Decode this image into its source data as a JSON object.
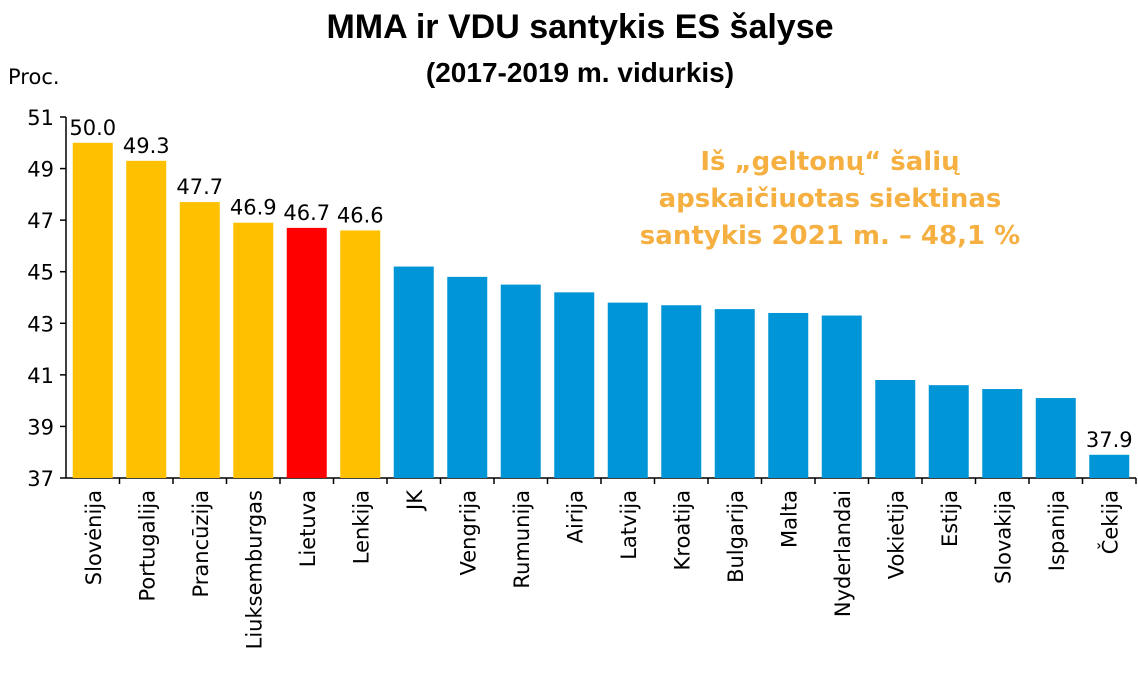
{
  "chart_data": {
    "type": "bar",
    "title": "MMA ir VDU santykis ES šalyse",
    "subtitle": "(2017-2019 m. vidurkis)",
    "y_label": "Proc.",
    "annotation": [
      "Iš „geltonų“ šalių",
      "apskaičiuotas  siektinas",
      "santykis 2021 m. – 48,1 %"
    ],
    "categories": [
      "Slovėnija",
      "Portugalija",
      "Prancūzija",
      "Liuksemburgas",
      "Lietuva",
      "Lenkija",
      "JK",
      "Vengrija",
      "Rumunija",
      "Airija",
      "Latvija",
      "Kroatija",
      "Bulgarija",
      "Malta",
      "Nyderlandai",
      "Vokietija",
      "Estija",
      "Slovakija",
      "Ispanija",
      "Čekija"
    ],
    "values": [
      50.0,
      49.3,
      47.7,
      46.9,
      46.7,
      46.6,
      45.2,
      44.8,
      44.5,
      44.2,
      43.8,
      43.7,
      43.55,
      43.4,
      43.3,
      40.8,
      40.6,
      40.45,
      40.1,
      37.9
    ],
    "value_labels": [
      "50.0",
      "49.3",
      "47.7",
      "46.9",
      "46.7",
      "46.6",
      null,
      null,
      null,
      null,
      null,
      null,
      null,
      null,
      null,
      null,
      null,
      null,
      null,
      "37.9"
    ],
    "colors": [
      "#ffc000",
      "#ffc000",
      "#ffc000",
      "#ffc000",
      "#ff0000",
      "#ffc000",
      "#0095d6",
      "#0095d6",
      "#0095d6",
      "#0095d6",
      "#0095d6",
      "#0095d6",
      "#0095d6",
      "#0095d6",
      "#0095d6",
      "#0095d6",
      "#0095d6",
      "#0095d6",
      "#0095d6",
      "#0095d6"
    ],
    "annotation_color": "#f5b041",
    "ylim": [
      37,
      51
    ],
    "yticks": [
      37,
      39,
      41,
      43,
      45,
      47,
      49,
      51
    ],
    "grid": false
  }
}
